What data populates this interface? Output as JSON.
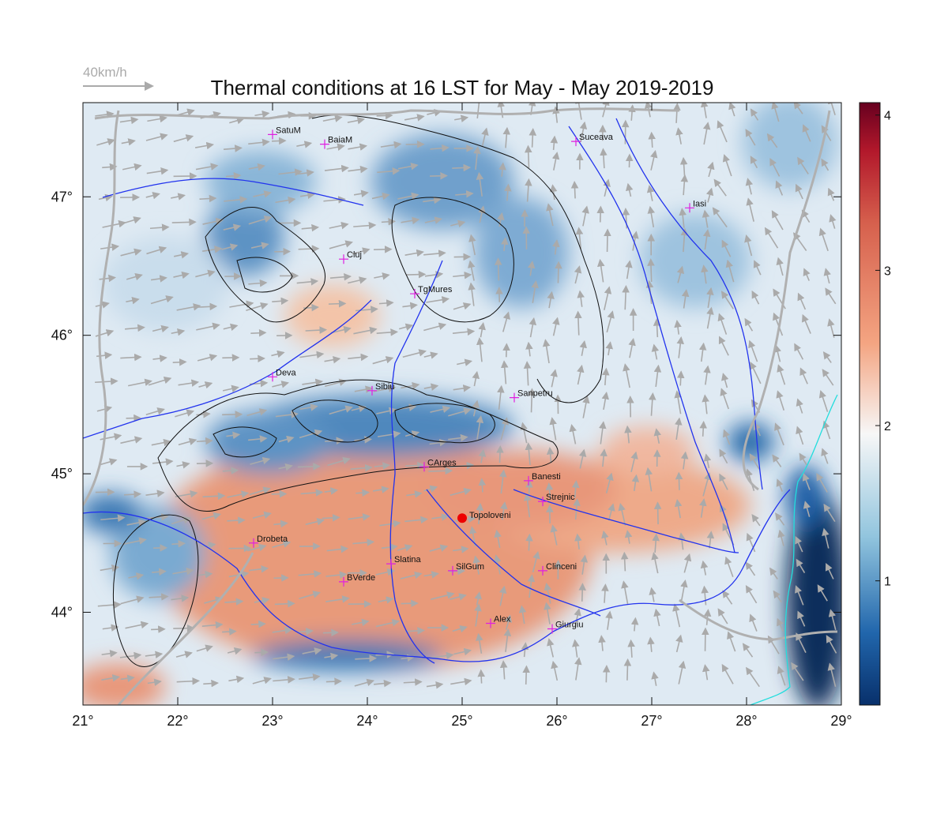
{
  "title": "Thermal conditions at 16 LST for May - May  2019-2019",
  "wind_scale_label": "40km/h",
  "colors": {
    "cold": "#1f5fa6",
    "neutral": "#f4f4f4",
    "warm": "#d6604d",
    "hot": "#67001f",
    "rivers": "#2233ee",
    "borders": "#b0b0b0",
    "contours": "#111111",
    "city_marker": "#e020e0",
    "highlight_marker": "#ee0000",
    "sea": "#0b2d5c",
    "coastline": "#22dddd"
  },
  "map": {
    "lon_ticks": [
      "21°",
      "22°",
      "23°",
      "24°",
      "25°",
      "26°",
      "27°",
      "28°",
      "29°"
    ],
    "lat_ticks": [
      "44°",
      "45°",
      "46°",
      "47°"
    ],
    "colorbar_ticks": [
      "1",
      "2",
      "3",
      "4"
    ],
    "cities": [
      {
        "name": "SatuM",
        "lon": 23.0,
        "lat": 47.45
      },
      {
        "name": "BaiaM",
        "lon": 23.55,
        "lat": 47.38
      },
      {
        "name": "Suceava",
        "lon": 26.2,
        "lat": 47.4
      },
      {
        "name": "Iasi",
        "lon": 27.4,
        "lat": 46.92
      },
      {
        "name": "Cluj",
        "lon": 23.75,
        "lat": 46.55
      },
      {
        "name": "TgMures",
        "lon": 24.5,
        "lat": 46.3
      },
      {
        "name": "Deva",
        "lon": 23.0,
        "lat": 45.7
      },
      {
        "name": "Sibiu",
        "lon": 24.05,
        "lat": 45.6
      },
      {
        "name": "Sanpetru",
        "lon": 25.55,
        "lat": 45.55
      },
      {
        "name": "CArges",
        "lon": 24.6,
        "lat": 45.05
      },
      {
        "name": "Banesti",
        "lon": 25.7,
        "lat": 44.95
      },
      {
        "name": "Strejnic",
        "lon": 25.85,
        "lat": 44.8
      },
      {
        "name": "Drobeta",
        "lon": 22.8,
        "lat": 44.5
      },
      {
        "name": "Slatina",
        "lon": 24.25,
        "lat": 44.35
      },
      {
        "name": "SilGum",
        "lon": 24.9,
        "lat": 44.3
      },
      {
        "name": "Clinceni",
        "lon": 25.85,
        "lat": 44.3
      },
      {
        "name": "BVerde",
        "lon": 23.75,
        "lat": 44.22
      },
      {
        "name": "Alex",
        "lon": 25.3,
        "lat": 43.92
      },
      {
        "name": "Giurgiu",
        "lon": 25.95,
        "lat": 43.88
      }
    ],
    "highlight": {
      "name": "Topoloveni",
      "lon": 25.0,
      "lat": 44.68
    }
  }
}
